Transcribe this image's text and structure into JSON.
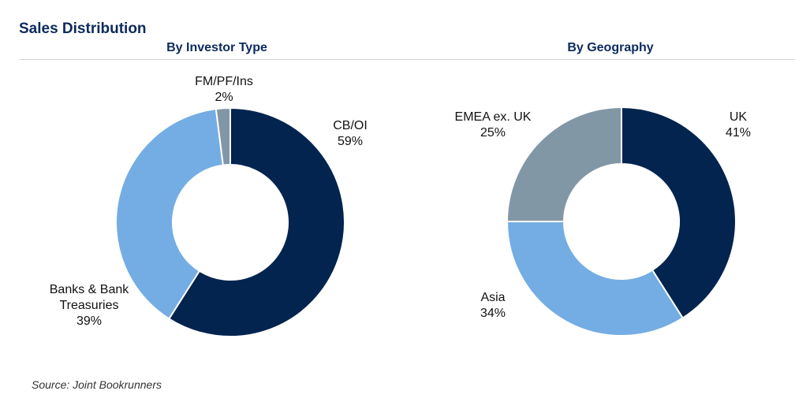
{
  "page_title": "Sales Distribution",
  "source_note": "Source: Joint Bookrunners",
  "colors": {
    "dark_navy": "#02244f",
    "light_blue": "#74ade3",
    "grey": "#8297a6",
    "title_navy": "#0c2a5c"
  },
  "chart_data": [
    {
      "type": "pie",
      "title": "By Investor Type",
      "donut": true,
      "slices": [
        {
          "label": "CB/OI",
          "value": 59,
          "display": "59%",
          "color": "#02244f"
        },
        {
          "label": "Banks & Bank Treasuries",
          "label_lines": [
            "Banks & Bank",
            "Treasuries"
          ],
          "value": 39,
          "display": "39%",
          "color": "#74ade3"
        },
        {
          "label": "FM/PF/Ins",
          "value": 2,
          "display": "2%",
          "color": "#8297a6"
        }
      ]
    },
    {
      "type": "pie",
      "title": "By Geography",
      "donut": true,
      "slices": [
        {
          "label": "UK",
          "value": 41,
          "display": "41%",
          "color": "#02244f"
        },
        {
          "label": "Asia",
          "value": 34,
          "display": "34%",
          "color": "#74ade3"
        },
        {
          "label": "EMEA ex. UK",
          "value": 25,
          "display": "25%",
          "color": "#8297a6"
        }
      ]
    }
  ]
}
